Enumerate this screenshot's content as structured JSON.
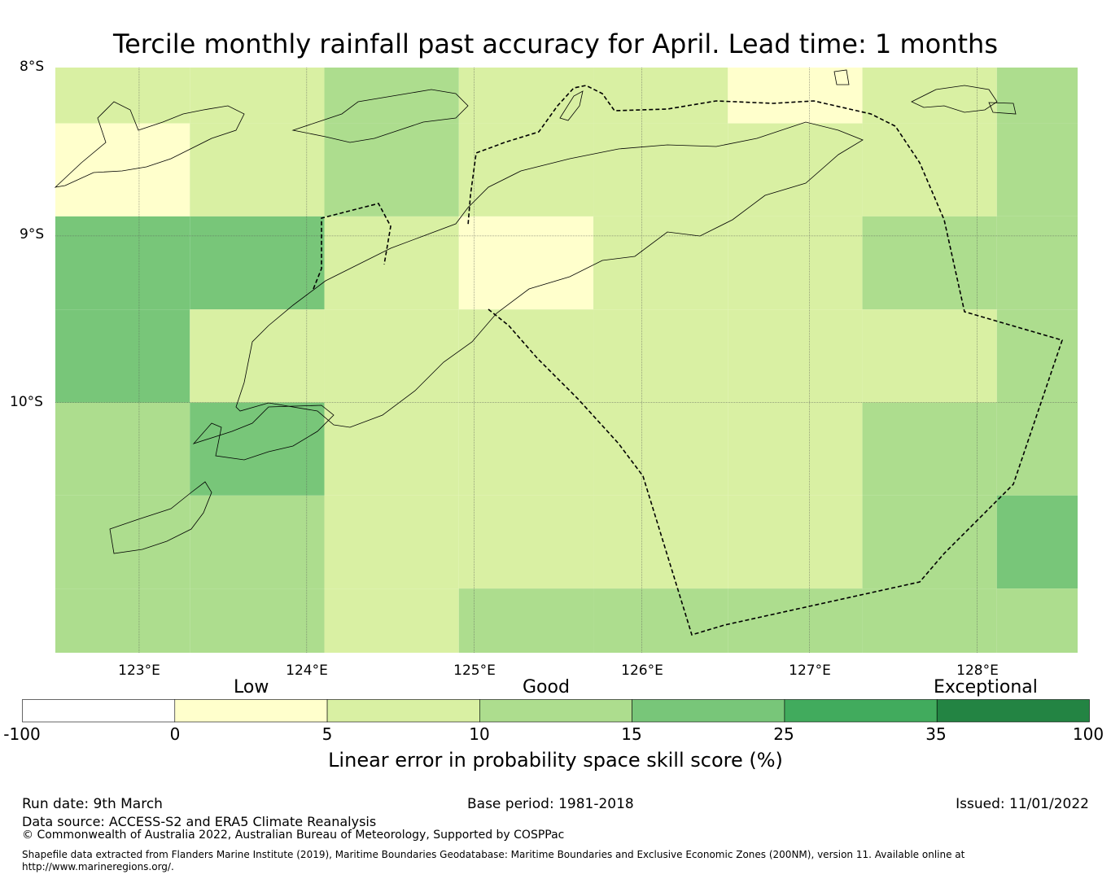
{
  "title": "Tercile monthly rainfall past accuracy for April. Lead time: 1 months",
  "map": {
    "lat_labels": [
      "8°S",
      "9°S",
      "10°S"
    ],
    "lon_labels": [
      "123°E",
      "124°E",
      "125°E",
      "126°E",
      "127°E",
      "128°E"
    ],
    "extent": {
      "lon_min": 122.5,
      "lon_max": 128.6,
      "lat_north": -7.99,
      "lat_south": -11.5
    },
    "cell_size_deg": 0.833,
    "grid_values": [
      [
        7,
        7,
        12,
        7,
        7,
        2,
        7,
        12
      ],
      [
        2,
        7,
        12,
        7,
        7,
        7,
        7,
        12
      ],
      [
        17,
        17,
        7,
        2,
        7,
        7,
        12,
        12
      ],
      [
        17,
        7,
        7,
        7,
        7,
        7,
        7,
        12
      ],
      [
        12,
        17,
        7,
        7,
        7,
        7,
        12,
        12
      ],
      [
        12,
        12,
        7,
        7,
        7,
        7,
        12,
        17
      ],
      [
        12,
        12,
        7,
        12,
        12,
        12,
        12,
        12
      ]
    ]
  },
  "colorbar": {
    "categories": [
      "Low",
      "Good",
      "Exceptional"
    ],
    "ticks": [
      "-100",
      "0",
      "5",
      "10",
      "15",
      "25",
      "35",
      "100"
    ],
    "colors": [
      "#ffffff",
      "#ffffcc",
      "#d9f0a3",
      "#addd8e",
      "#78c679",
      "#41ab5d",
      "#238443"
    ],
    "label": "Linear error in probability space skill score (%)"
  },
  "footer": {
    "run_date": "Run date: 9th March",
    "base_period": "Base period: 1981-2018",
    "issued": "Issued: 11/01/2022",
    "data_source": "Data source: ACCESS-S2 and ERA5 Climate Reanalysis",
    "copyright": "© Commonwealth of Australia 2022, Australian Bureau of Meteorology, Supported by COSPPac",
    "shapefile_line1": "Shapefile data extracted from Flanders Marine Institute (2019), Maritime Boundaries Geodatabase: Maritime Boundaries and Exclusive Economic Zones (200NM), version 11. Available online at",
    "shapefile_line2": "http://www.marineregions.org/."
  }
}
